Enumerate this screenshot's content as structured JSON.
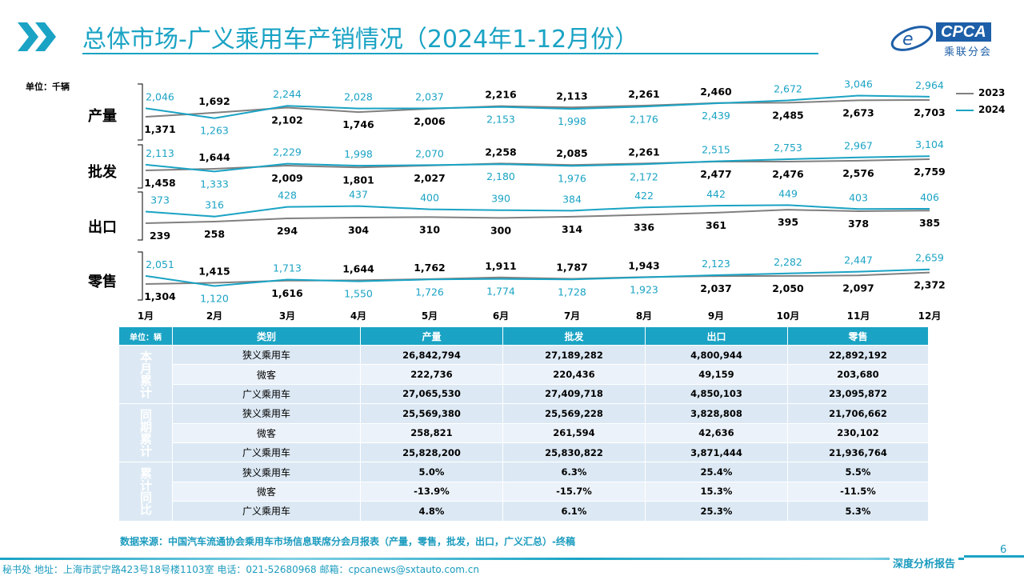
{
  "title": "总体市场-广义乘用车产销情况（2024年1-12月份）",
  "logo": {
    "brand": "CPCA",
    "sub": "乘联分会"
  },
  "unit": "单位：千辆",
  "colors": {
    "2023": "#808080",
    "2024": "#1AA3C4",
    "accent": "#1AA3C4"
  },
  "chart_data": {
    "type": "line",
    "categories": [
      "1月",
      "2月",
      "3月",
      "4月",
      "5月",
      "6月",
      "7月",
      "8月",
      "9月",
      "10月",
      "11月",
      "12月"
    ],
    "legend": [
      "2023",
      "2024"
    ],
    "legend_position": "top-right",
    "panels": [
      {
        "label": "产量",
        "series": [
          {
            "name": "2023",
            "values": [
              1371,
              1692,
              2102,
              1746,
              2006,
              2216,
              2113,
              2261,
              2460,
              2485,
              2673,
              2703
            ]
          },
          {
            "name": "2024",
            "values": [
              2046,
              1263,
              2244,
              2028,
              2037,
              2153,
              1998,
              2176,
              2439,
              2672,
              3046,
              2964
            ]
          }
        ]
      },
      {
        "label": "批发",
        "series": [
          {
            "name": "2023",
            "values": [
              1458,
              1644,
              2009,
              1801,
              2027,
              2258,
              2085,
              2261,
              2477,
              2476,
              2576,
              2759
            ]
          },
          {
            "name": "2024",
            "values": [
              2113,
              1333,
              2229,
              1998,
              2070,
              2180,
              1976,
              2172,
              2515,
              2753,
              2967,
              3104
            ]
          }
        ]
      },
      {
        "label": "出口",
        "series": [
          {
            "name": "2023",
            "values": [
              239,
              258,
              294,
              304,
              310,
              300,
              314,
              336,
              361,
              395,
              378,
              385
            ]
          },
          {
            "name": "2024",
            "values": [
              373,
              316,
              428,
              437,
              400,
              390,
              384,
              422,
              442,
              449,
              403,
              406
            ]
          }
        ]
      },
      {
        "label": "零售",
        "series": [
          {
            "name": "2023",
            "values": [
              1304,
              1415,
              1616,
              1644,
              1762,
              1911,
              1787,
              1943,
              2037,
              2050,
              2097,
              2372
            ]
          },
          {
            "name": "2024",
            "values": [
              2051,
              1120,
              1713,
              1550,
              1726,
              1774,
              1728,
              1923,
              2123,
              2282,
              2447,
              2659
            ]
          }
        ]
      }
    ]
  },
  "table": {
    "unit": "单位：辆",
    "headers": [
      "类别",
      "产量",
      "批发",
      "出口",
      "零售"
    ],
    "groups": [
      {
        "label": "本月累计",
        "rows": [
          [
            "狭义乘用车",
            "26,842,794",
            "27,189,282",
            "4,800,944",
            "22,892,192"
          ],
          [
            "微客",
            "222,736",
            "220,436",
            "49,159",
            "203,680"
          ],
          [
            "广义乘用车",
            "27,065,530",
            "27,409,718",
            "4,850,103",
            "23,095,872"
          ]
        ]
      },
      {
        "label": "同期累计",
        "rows": [
          [
            "狭义乘用车",
            "25,569,380",
            "25,569,228",
            "3,828,808",
            "21,706,662"
          ],
          [
            "微客",
            "258,821",
            "261,594",
            "42,636",
            "230,102"
          ],
          [
            "广义乘用车",
            "25,828,200",
            "25,830,822",
            "3,871,444",
            "21,936,764"
          ]
        ]
      },
      {
        "label": "累计同比",
        "rows": [
          [
            "狭义乘用车",
            "5.0%",
            "6.3%",
            "25.4%",
            "5.5%"
          ],
          [
            "微客",
            "-13.9%",
            "-15.7%",
            "15.3%",
            "-11.5%"
          ],
          [
            "广义乘用车",
            "4.8%",
            "6.1%",
            "25.3%",
            "5.3%"
          ]
        ]
      }
    ]
  },
  "source": "数据来源：中国汽车流通协会乘用车市场信息联席分会月报表（产量，零售，批发，出口，广义汇总）-终稿",
  "footer": "秘书处   地址：上海市武宁路423号18号楼1103室  电话：021-52680968   邮箱：cpcanews@sxtauto.com.cn",
  "report": "深度分析报告",
  "page": "6"
}
